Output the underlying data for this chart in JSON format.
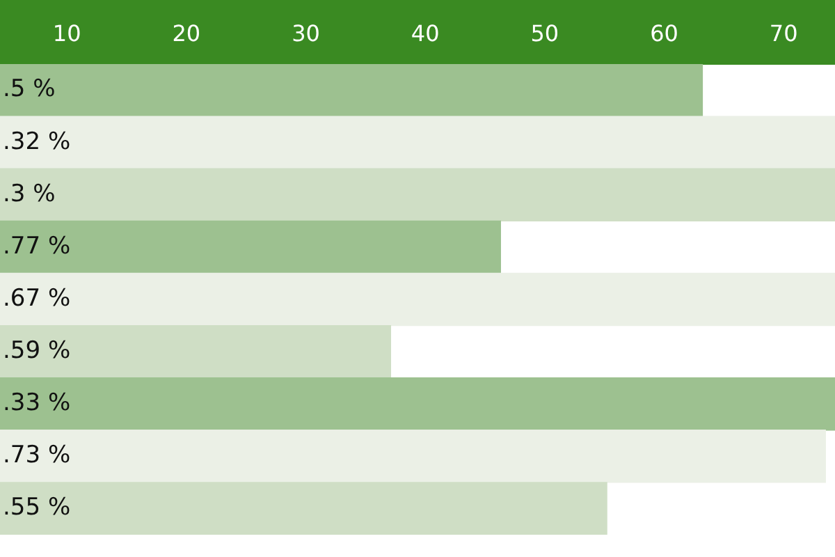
{
  "chart_data": {
    "type": "bar",
    "orientation": "horizontal",
    "categories": [
      null,
      null,
      null,
      null,
      null,
      null,
      null,
      null,
      null
    ],
    "values": [
      63.2,
      74.3,
      74.3,
      46.3,
      74.3,
      37.1,
      74.3,
      73.5,
      55.2
    ],
    "colors": [
      "#9dc190",
      "#ebf0e6",
      "#cfdec5",
      "#9dc190",
      "#ebf0e6",
      "#cfdec5",
      "#9dc190",
      "#ebf0e6",
      "#cfdec5"
    ],
    "annotations": [
      ".5 %",
      ".32 %",
      ".3 %",
      ".77 %",
      ".67 %",
      ".59 %",
      ".33 %",
      ".73 %",
      ".55 %"
    ],
    "xlim": [
      4.4,
      74.3
    ],
    "xticks": [
      10,
      20,
      30,
      40,
      50,
      60,
      70
    ],
    "grid": false,
    "legend": false
  }
}
